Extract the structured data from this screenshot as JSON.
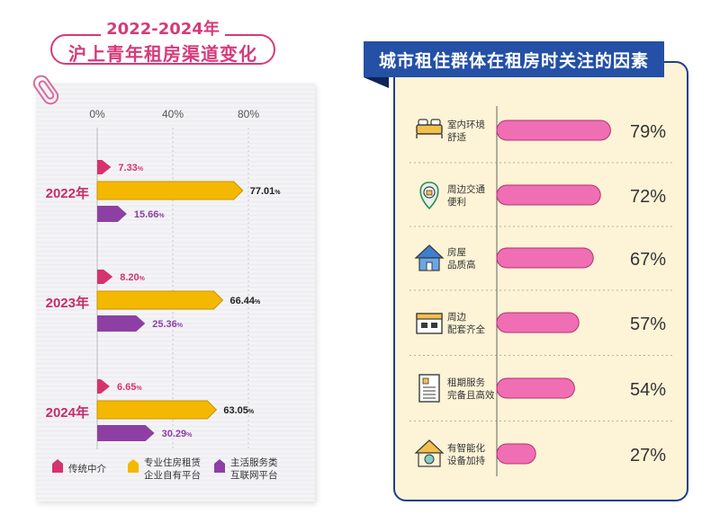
{
  "left": {
    "title_year": "2022-2024年",
    "title_main": "沪上青年租房渠道变化",
    "legend": [
      {
        "label_lines": [
          "传统中介"
        ],
        "color": "#d6336c"
      },
      {
        "label_lines": [
          "专业住房租赁",
          "企业自有平台"
        ],
        "color": "#f5b800"
      },
      {
        "label_lines": [
          "主活服务类",
          "互联网平台"
        ],
        "color": "#8e3fa3"
      }
    ]
  },
  "right": {
    "title": "城市租住群体在租房时关注的因素",
    "bar_color": "#f06eb4"
  },
  "chart_data": [
    {
      "type": "bar",
      "orientation": "horizontal",
      "categories": [
        "2022年",
        "2023年",
        "2024年"
      ],
      "x_ticks": [
        "0%",
        "40%",
        "80%"
      ],
      "xlim": [
        0,
        80
      ],
      "grid": true,
      "series": [
        {
          "name": "传统中介",
          "values": [
            7.33,
            8.2,
            6.65
          ],
          "labels": [
            "7.33",
            "8.20",
            "6.65"
          ],
          "color": "#d6336c"
        },
        {
          "name": "专业住房租赁企业自有平台",
          "values": [
            77.01,
            66.44,
            63.05
          ],
          "labels": [
            "77.01",
            "66.44",
            "63.05"
          ],
          "color": "#f5b800"
        },
        {
          "name": "主活服务类互联网平台",
          "values": [
            15.66,
            25.36,
            30.29
          ],
          "labels": [
            "15.66",
            "25.36",
            "30.29"
          ],
          "color": "#8e3fa3"
        }
      ],
      "unit_suffix": "%",
      "legend_position": "bottom"
    },
    {
      "type": "bar",
      "orientation": "horizontal",
      "title": "城市租住群体在租房时关注的因素",
      "categories": [
        {
          "lines": [
            "室内环境",
            "舒适"
          ],
          "icon": "bed-icon"
        },
        {
          "lines": [
            "周边交通",
            "便利"
          ],
          "icon": "map-pin-icon"
        },
        {
          "lines": [
            "房屋",
            "品质高"
          ],
          "icon": "house-icon"
        },
        {
          "lines": [
            "周边",
            "配套齐全"
          ],
          "icon": "shop-icon"
        },
        {
          "lines": [
            "租期服务",
            "完备且高效"
          ],
          "icon": "document-icon"
        },
        {
          "lines": [
            "有智能化",
            "设备加持"
          ],
          "icon": "smart-home-icon"
        }
      ],
      "values": [
        79,
        72,
        67,
        57,
        54,
        27
      ],
      "labels": [
        "79%",
        "72%",
        "67%",
        "57%",
        "54%",
        "27%"
      ],
      "xlim": [
        0,
        80
      ]
    }
  ]
}
